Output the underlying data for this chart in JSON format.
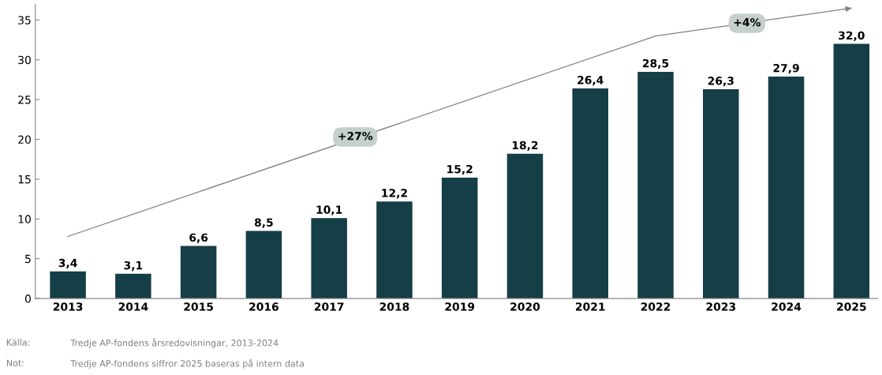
{
  "chart_data": {
    "type": "bar",
    "categories": [
      "2013",
      "2014",
      "2015",
      "2016",
      "2017",
      "2018",
      "2019",
      "2020",
      "2021",
      "2022",
      "2023",
      "2024",
      "2025"
    ],
    "series": [
      {
        "color": "#163e47",
        "values": [
          3.4,
          3.1,
          6.6,
          8.5,
          10.1,
          12.2,
          15.2,
          18.2,
          26.4,
          28.5,
          26.3,
          27.9,
          32.0
        ],
        "value_labels": [
          "3,4",
          "3,1",
          "6,6",
          "8,5",
          "10,1",
          "12,2",
          "15,2",
          "18,2",
          "26,4",
          "28,5",
          "26,3",
          "27,9",
          "32,0"
        ]
      },
      {
        "type": "line",
        "color": "#808080",
        "values": [
          7.8,
          null,
          null,
          null,
          null,
          null,
          null,
          null,
          null,
          33,
          null,
          null,
          36.5
        ]
      }
    ],
    "ylim": [
      0,
      37
    ],
    "yticks": [
      0,
      5,
      10,
      15,
      20,
      25,
      30,
      35
    ],
    "grid": false,
    "legend": false,
    "marker": "none",
    "annotations": [
      "+27%",
      "+4%",
      "Källa:",
      "Tredje AP-fondens årsredovisningar, 2013-2024",
      "Not:",
      "Tredje AP-fondens siffror 2025 baseras på intern data"
    ]
  }
}
